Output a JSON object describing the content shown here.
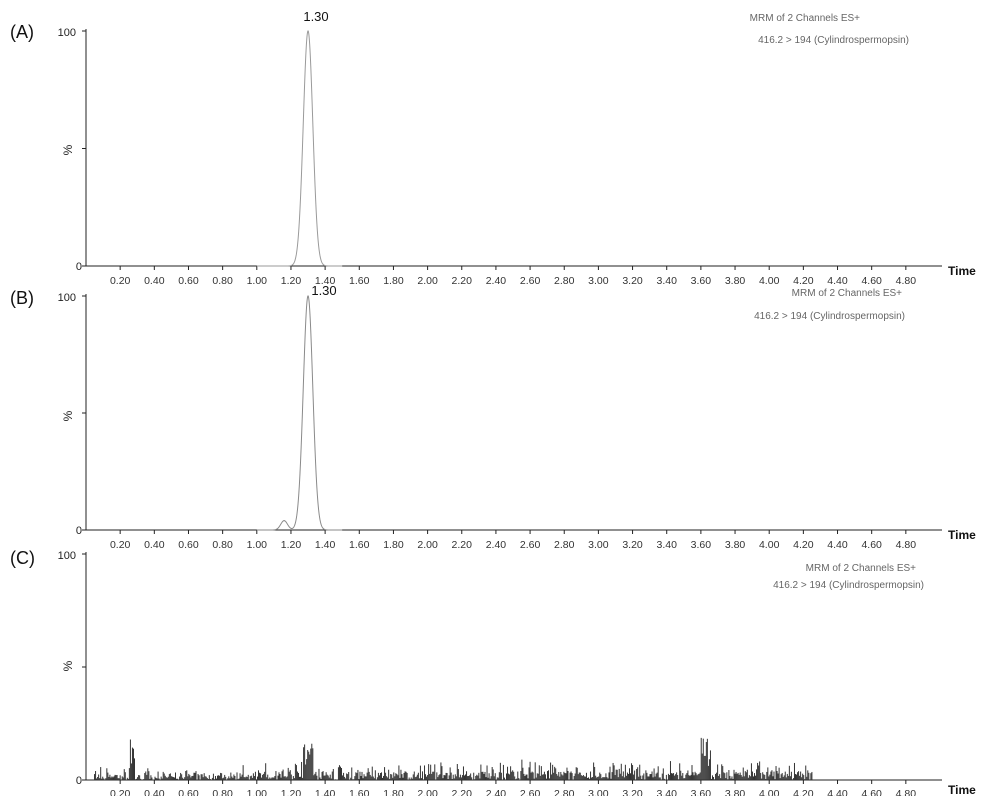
{
  "chart_data": [
    {
      "type": "line",
      "panel_label": "(A)",
      "ylabel": "%",
      "xlabel": "Time",
      "y_ticks": [
        "100",
        "0"
      ],
      "x_ticks": [
        "0.20",
        "0.40",
        "0.60",
        "0.80",
        "1.00",
        "1.20",
        "1.40",
        "1.60",
        "1.80",
        "2.00",
        "2.20",
        "2.40",
        "2.60",
        "2.80",
        "3.00",
        "3.20",
        "3.40",
        "3.60",
        "3.80",
        "4.00",
        "4.20",
        "4.40",
        "4.60",
        "4.80"
      ],
      "xlim": [
        0.0,
        5.0
      ],
      "ylim": [
        0,
        100
      ],
      "info_line1": "MRM of 2 Channels ES+",
      "info_line2": "416.2 > 194 (Cylindrospermopsin)",
      "peak_label": "1.30",
      "peaks": [
        {
          "x": 1.3,
          "y": 100,
          "width": 0.028
        }
      ],
      "noise": "none",
      "trace_color": "#9a9a9a"
    },
    {
      "type": "line",
      "panel_label": "(B)",
      "ylabel": "%",
      "xlabel": "Time",
      "y_ticks": [
        "100",
        "0"
      ],
      "x_ticks": [
        "0.20",
        "0.40",
        "0.60",
        "0.80",
        "1.00",
        "1.20",
        "1.40",
        "1.60",
        "1.80",
        "2.00",
        "2.20",
        "2.40",
        "2.60",
        "2.80",
        "3.00",
        "3.20",
        "3.40",
        "3.60",
        "3.80",
        "4.00",
        "4.20",
        "4.40",
        "4.60",
        "4.80"
      ],
      "xlim": [
        0.0,
        5.0
      ],
      "ylim": [
        0,
        100
      ],
      "info_line1": "MRM of 2 Channels ES+",
      "info_line2": "416.2 > 194 (Cylindrospermopsin)",
      "peak_label": "1.30",
      "peaks": [
        {
          "x": 1.16,
          "y": 4,
          "width": 0.02
        },
        {
          "x": 1.3,
          "y": 100,
          "width": 0.028
        }
      ],
      "noise": "none",
      "trace_color": "#8a8a8a"
    },
    {
      "type": "line",
      "panel_label": "(C)",
      "ylabel": "%",
      "xlabel": "Time",
      "y_ticks": [
        "100",
        "0"
      ],
      "x_ticks": [
        "0.20",
        "0.40",
        "0.60",
        "0.80",
        "1.00",
        "1.20",
        "1.40",
        "1.60",
        "1.80",
        "2.00",
        "2.20",
        "2.40",
        "2.60",
        "2.80",
        "3.00",
        "3.20",
        "3.40",
        "3.60",
        "3.80",
        "4.00",
        "4.20",
        "4.40",
        "4.60",
        "4.80"
      ],
      "xlim": [
        0.0,
        5.0
      ],
      "ylim": [
        0,
        100
      ],
      "info_line1": "MRM of 2 Channels ES+",
      "info_line2": "416.2 > 194 (Cylindrospermopsin)",
      "peak_label": "",
      "peaks": [],
      "noise": "baseline",
      "noise_range": [
        0.05,
        4.25
      ],
      "noise_max": 20,
      "trace_color": "#333333"
    }
  ]
}
